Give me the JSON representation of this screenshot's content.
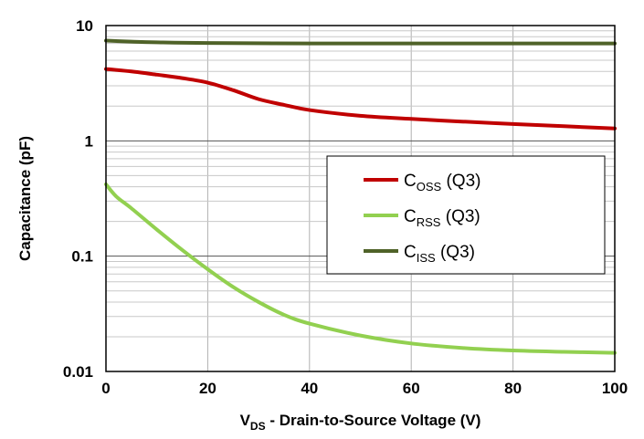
{
  "chart_data": {
    "type": "line",
    "title": "",
    "xlabel": {
      "main": "V",
      "sub": "DS",
      "rest": " - Drain-to-Source Voltage (V)"
    },
    "ylabel": "Capacitance (pF)",
    "xlim": [
      0,
      100
    ],
    "ylim": [
      0.01,
      10
    ],
    "yscale": "log",
    "grid": true,
    "legend_position": "center-right",
    "x_ticks": [
      0,
      20,
      40,
      60,
      80,
      100
    ],
    "x_tick_labels": [
      "0",
      "20",
      "40",
      "60",
      "80",
      "100"
    ],
    "y_ticks": [
      0.01,
      0.1,
      1,
      10
    ],
    "y_tick_labels": [
      "0.01",
      "0.1",
      "1",
      "10"
    ],
    "series": [
      {
        "name": "COSS (Q3)",
        "label": {
          "main": "C",
          "sub": "OSS",
          "rest": " (Q3)"
        },
        "color": "#c00000",
        "x": [
          0,
          5,
          10,
          15,
          20,
          25,
          30,
          35,
          40,
          50,
          60,
          70,
          80,
          90,
          100
        ],
        "y": [
          4.2,
          4.0,
          3.75,
          3.5,
          3.2,
          2.75,
          2.3,
          2.05,
          1.85,
          1.65,
          1.55,
          1.47,
          1.4,
          1.34,
          1.28
        ]
      },
      {
        "name": "CRSS (Q3)",
        "label": {
          "main": "C",
          "sub": "RSS",
          "rest": " (Q3)"
        },
        "color": "#92d050",
        "x": [
          0,
          2,
          5,
          10,
          15,
          20,
          25,
          30,
          35,
          40,
          50,
          60,
          70,
          80,
          90,
          100
        ],
        "y": [
          0.42,
          0.33,
          0.26,
          0.17,
          0.113,
          0.077,
          0.054,
          0.04,
          0.031,
          0.026,
          0.0205,
          0.0175,
          0.016,
          0.0152,
          0.0148,
          0.0145
        ]
      },
      {
        "name": "CISS (Q3)",
        "label": {
          "main": "C",
          "sub": "ISS",
          "rest": " (Q3)"
        },
        "color": "#4f6228",
        "x": [
          0,
          5,
          10,
          20,
          40,
          60,
          80,
          100
        ],
        "y": [
          7.4,
          7.25,
          7.15,
          7.05,
          7.0,
          7.0,
          7.0,
          7.0
        ]
      }
    ]
  }
}
